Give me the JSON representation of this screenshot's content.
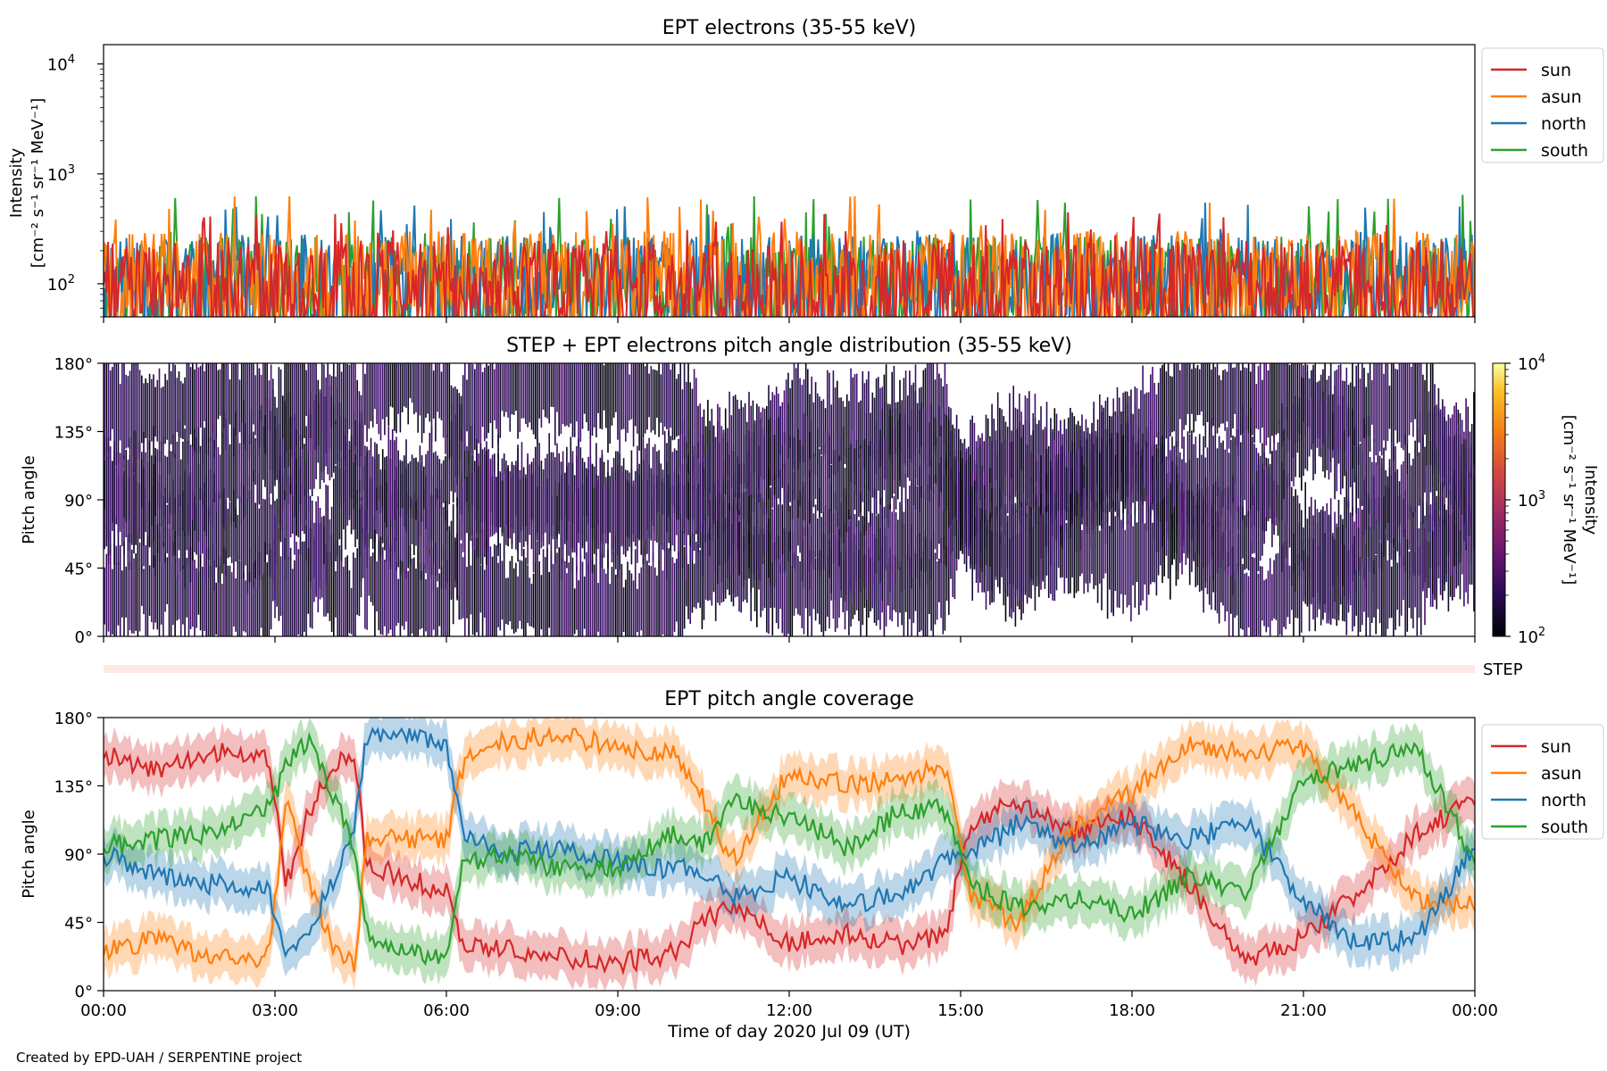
{
  "footer": "Created by EPD-UAH / SERPENTINE project",
  "xaxis": {
    "label": "Time of day 2020 Jul 09 (UT)",
    "range_hours": [
      0,
      24
    ],
    "ticks": [
      {
        "hour": 0,
        "label": "00:00"
      },
      {
        "hour": 3,
        "label": "03:00"
      },
      {
        "hour": 6,
        "label": "06:00"
      },
      {
        "hour": 9,
        "label": "09:00"
      },
      {
        "hour": 12,
        "label": "12:00"
      },
      {
        "hour": 15,
        "label": "15:00"
      },
      {
        "hour": 18,
        "label": "18:00"
      },
      {
        "hour": 21,
        "label": "21:00"
      },
      {
        "hour": 24,
        "label": "00:00"
      }
    ]
  },
  "colors": {
    "sun": "#d62728",
    "asun": "#ff7f0e",
    "north": "#1f77b4",
    "south": "#2ca02c"
  },
  "chart_data": [
    {
      "type": "line",
      "title": "EPT electrons (35-55 keV)",
      "ylabel_lines": [
        "Intensity",
        "[cm⁻² s⁻¹ sr⁻¹ MeV⁻¹]"
      ],
      "yscale": "log",
      "ylim": [
        50,
        15000
      ],
      "yticks": [
        {
          "value": 100,
          "base": "10",
          "exp": "2"
        },
        {
          "value": 1000,
          "base": "10",
          "exp": "3"
        },
        {
          "value": 10000,
          "base": "10",
          "exp": "4"
        }
      ],
      "legend": {
        "placement": "right-outside-top",
        "entries": [
          "sun",
          "asun",
          "north",
          "south"
        ]
      },
      "series": [
        {
          "name": "sun",
          "typical_range": [
            50,
            250
          ],
          "peak_max": 450
        },
        {
          "name": "asun",
          "typical_range": [
            60,
            300
          ],
          "peak_max": 650
        },
        {
          "name": "north",
          "typical_range": [
            50,
            280
          ],
          "peak_max": 550
        },
        {
          "name": "south",
          "typical_range": [
            50,
            270
          ],
          "peak_max": 650
        }
      ]
    },
    {
      "type": "heatmap",
      "title": "STEP + EPT electrons pitch angle distribution (35-55 keV)",
      "ylabel": "Pitch angle",
      "ylim": [
        0,
        180
      ],
      "yticks": [
        {
          "value": 0,
          "label": "0°"
        },
        {
          "value": 45,
          "label": "45°"
        },
        {
          "value": 90,
          "label": "90°"
        },
        {
          "value": 135,
          "label": "135°"
        },
        {
          "value": 180,
          "label": "180°"
        }
      ],
      "colorbar": {
        "label_lines": [
          "Intensity",
          "[cm⁻² s⁻¹ sr⁻¹ MeV⁻¹]"
        ],
        "scale": "log",
        "range": [
          100,
          10000
        ],
        "ticks": [
          {
            "value": 100,
            "base": "10",
            "exp": "2"
          },
          {
            "value": 1000,
            "base": "10",
            "exp": "3"
          },
          {
            "value": 10000,
            "base": "10",
            "exp": "4"
          }
        ],
        "colormap": "inferno"
      }
    },
    {
      "type": "bar",
      "label": "STEP",
      "note_color": "#fde9e1"
    },
    {
      "type": "line",
      "title": "EPT pitch angle coverage",
      "ylabel": "Pitch angle",
      "ylim": [
        0,
        180
      ],
      "yticks": [
        {
          "value": 0,
          "label": "0°"
        },
        {
          "value": 45,
          "label": "45°"
        },
        {
          "value": 90,
          "label": "90°"
        },
        {
          "value": 135,
          "label": "135°"
        },
        {
          "value": 180,
          "label": "180°"
        }
      ],
      "legend": {
        "placement": "right-outside-top",
        "entries": [
          "sun",
          "asun",
          "north",
          "south"
        ]
      },
      "series": [
        {
          "name": "sun",
          "x": [
            0,
            1,
            2,
            2.9,
            3.2,
            3.6,
            4.0,
            4.4,
            4.6,
            5.2,
            6.0,
            6.3,
            7,
            8,
            9,
            10,
            10.5,
            11,
            12,
            13,
            14,
            14.7,
            15.2,
            16,
            17,
            18,
            19,
            20,
            21,
            22,
            23,
            24
          ],
          "y": [
            155,
            145,
            158,
            155,
            70,
            118,
            150,
            155,
            85,
            75,
            65,
            30,
            28,
            22,
            18,
            25,
            45,
            58,
            30,
            38,
            30,
            35,
            110,
            125,
            105,
            115,
            70,
            20,
            35,
            65,
            105,
            125
          ]
        },
        {
          "name": "asun",
          "x": [
            0,
            1,
            2,
            2.9,
            3.2,
            3.6,
            4.0,
            4.4,
            4.6,
            5.2,
            6.0,
            6.3,
            7,
            8,
            9,
            10,
            10.5,
            11,
            12,
            13,
            14,
            14.7,
            15.2,
            16,
            17,
            18,
            19,
            20,
            21,
            22,
            23,
            24
          ],
          "y": [
            25,
            35,
            20,
            22,
            130,
            70,
            30,
            15,
            100,
            100,
            100,
            150,
            165,
            168,
            162,
            155,
            125,
            85,
            145,
            135,
            140,
            150,
            60,
            45,
            110,
            130,
            165,
            155,
            160,
            110,
            60,
            55
          ]
        },
        {
          "name": "north",
          "x": [
            0,
            1,
            2,
            2.9,
            3.2,
            3.6,
            4.0,
            4.4,
            4.6,
            5.2,
            6.0,
            6.3,
            7,
            8,
            9,
            10,
            10.5,
            11,
            12,
            13,
            14,
            14.7,
            15.2,
            16,
            17,
            18,
            19,
            20,
            21,
            22,
            23,
            24
          ],
          "y": [
            90,
            75,
            70,
            65,
            20,
            40,
            70,
            110,
            165,
            170,
            160,
            105,
            90,
            95,
            85,
            80,
            80,
            60,
            75,
            55,
            65,
            85,
            90,
            110,
            95,
            110,
            100,
            110,
            60,
            30,
            35,
            95
          ]
        },
        {
          "name": "south",
          "x": [
            0,
            1,
            2,
            2.9,
            3.2,
            3.6,
            4.0,
            4.4,
            4.6,
            5.2,
            6.0,
            6.3,
            7,
            8,
            9,
            10,
            10.5,
            11,
            12,
            13,
            14,
            14.7,
            15.2,
            16,
            17,
            18,
            19,
            20,
            21,
            22,
            23,
            24
          ],
          "y": [
            95,
            100,
            105,
            120,
            150,
            165,
            130,
            95,
            40,
            25,
            20,
            85,
            90,
            80,
            80,
            105,
            95,
            125,
            115,
            95,
            120,
            120,
            70,
            55,
            60,
            50,
            75,
            65,
            140,
            150,
            160,
            85
          ]
        }
      ]
    }
  ]
}
